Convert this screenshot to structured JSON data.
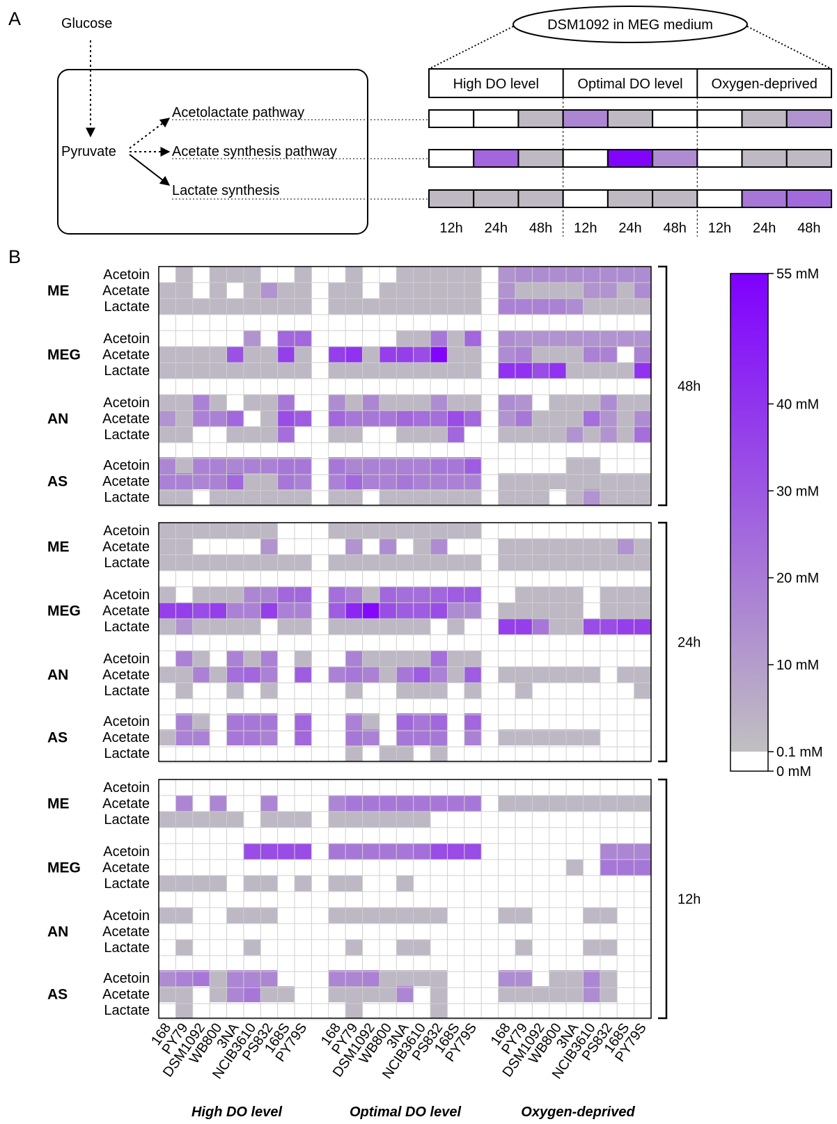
{
  "panel_a": {
    "label": "A",
    "glucose": "Glucose",
    "pyruvate": "Pyruvate",
    "pathways": [
      "Acetolactate pathway",
      "Acetate synthesis pathway",
      "Lactate synthesis"
    ],
    "strain_label": "DSM1092 in MEG medium",
    "conditions": [
      "High DO level",
      "Optimal DO level",
      "Oxygen-deprived"
    ],
    "times": [
      "12h",
      "24h",
      "48h",
      "12h",
      "24h",
      "48h",
      "12h",
      "24h",
      "48h"
    ],
    "levels": [
      [
        0,
        0,
        0.08,
        5,
        0.08,
        0,
        0,
        0.08,
        3
      ],
      [
        0,
        12,
        0.08,
        0,
        52,
        4,
        0,
        0.08,
        0.08
      ],
      [
        0.08,
        0.08,
        0.08,
        0,
        0.08,
        0.08,
        0,
        8,
        11
      ]
    ]
  },
  "panel_b": {
    "label": "B",
    "media": [
      "ME",
      "MEG",
      "AN",
      "AS"
    ],
    "metabolites": [
      "Acetoin",
      "Acetate",
      "Lactate"
    ],
    "timepoints": [
      "48h",
      "24h",
      "12h"
    ],
    "strains": [
      "168",
      "PY79",
      "DSM1092",
      "WB800",
      "3NA",
      "NCIB3610",
      "PS832",
      "168S",
      "PY79S"
    ],
    "conditions": [
      "High DO level",
      "Optimal DO level",
      "Oxygen-deprived"
    ]
  },
  "colorbar": {
    "ticks": [
      "55 mM",
      "40 mM",
      "30 mM",
      "20 mM",
      "10 mM",
      "0.1 mM",
      "0    mM"
    ],
    "colors": {
      "zero": "#ffffff",
      "low": "#c0c0c0",
      "high": "#7f00ff"
    }
  },
  "chart_data": {
    "type": "heatmap",
    "units": "mM",
    "max_value": 55,
    "note_values": "rows: medium × metabolite × timepoint; 27 columns = 3 conditions × 9 strains",
    "data": {
      "48h": {
        "ME": {
          "Acetoin": [
            0,
            0.1,
            0,
            0.1,
            0.1,
            0.1,
            0,
            0,
            0.1,
            0,
            0.1,
            0,
            0,
            0.1,
            0.1,
            0.1,
            0.1,
            0.1,
            3,
            4,
            4,
            4,
            4,
            4,
            4,
            4,
            4
          ],
          "Acetate": [
            0.1,
            0.1,
            0,
            0.1,
            0,
            0.1,
            3,
            0.1,
            0.1,
            0.1,
            0.1,
            0,
            0.1,
            0.1,
            0.1,
            0.1,
            0.1,
            0.1,
            3,
            0.1,
            0.1,
            0.1,
            0.1,
            3,
            3,
            0.1,
            4
          ],
          "Lactate": [
            0.1,
            0.1,
            0.1,
            0.1,
            0.1,
            0.1,
            0.1,
            0.1,
            0.1,
            0.1,
            0.1,
            0.1,
            0.1,
            0.1,
            0.1,
            0.1,
            0.1,
            0.1,
            6,
            6,
            6,
            6,
            4,
            0.1,
            0.1,
            0.1,
            0.1
          ]
        },
        "MEG": {
          "Acetoin": [
            0,
            0,
            0,
            0,
            0,
            3,
            0,
            12,
            12,
            0,
            0,
            0,
            0,
            0.1,
            0.1,
            8,
            0.1,
            12,
            4,
            3,
            3,
            3,
            3,
            3,
            3,
            3,
            3
          ],
          "Acetate": [
            0.1,
            0.1,
            0.1,
            0.1,
            18,
            0.1,
            0.1,
            25,
            0.1,
            25,
            30,
            0.1,
            25,
            25,
            20,
            52,
            0.1,
            0.1,
            4,
            6,
            0.1,
            0.1,
            0.1,
            6,
            6,
            0,
            6
          ],
          "Lactate": [
            0.1,
            0.1,
            0.1,
            0.1,
            0.1,
            0.1,
            0.1,
            0.1,
            0.1,
            0.1,
            0.1,
            0.1,
            0.1,
            0.1,
            0.1,
            0.1,
            0.1,
            0.1,
            30,
            30,
            20,
            30,
            0.1,
            0.1,
            0.1,
            0.1,
            30
          ]
        },
        "AN": {
          "Acetoin": [
            0.1,
            0.1,
            6,
            0.1,
            0,
            0.1,
            0.1,
            8,
            0,
            4,
            0.1,
            5,
            0.1,
            0.1,
            0.1,
            4,
            0.1,
            0.1,
            4,
            3,
            0,
            0.1,
            0.1,
            0.1,
            4,
            0.1,
            0.1
          ],
          "Acetate": [
            3,
            0.1,
            6,
            6,
            12,
            0,
            0.1,
            20,
            15,
            12,
            8,
            8,
            8,
            12,
            10,
            10,
            20,
            12,
            3,
            8,
            0.1,
            0.1,
            0.1,
            10,
            3,
            0.1,
            4
          ],
          "Lactate": [
            0.1,
            0.1,
            0,
            0,
            0.1,
            0.1,
            0.1,
            10,
            0,
            0.1,
            0.1,
            0,
            0,
            0.1,
            0.1,
            0.1,
            12,
            0,
            0.1,
            0.1,
            0.1,
            0.1,
            3,
            0.1,
            3,
            0.1,
            10
          ]
        },
        "AS": {
          "Acetoin": [
            5,
            0.1,
            6,
            6,
            5,
            6,
            6,
            8,
            8,
            8,
            5,
            6,
            6,
            6,
            6,
            8,
            8,
            15,
            0,
            0,
            0,
            0,
            0.1,
            0.1,
            0,
            0,
            0
          ],
          "Acetate": [
            6,
            6,
            5,
            6,
            12,
            0.1,
            0.1,
            8,
            6,
            6,
            12,
            6,
            6,
            8,
            6,
            6,
            6,
            6,
            0.1,
            0.1,
            0.1,
            0.1,
            0.1,
            0.1,
            0.1,
            0.1,
            0.1
          ],
          "Lactate": [
            0.1,
            0.1,
            0,
            0.1,
            0.1,
            0.1,
            0.1,
            0.1,
            0.1,
            0.1,
            0.1,
            0,
            0.1,
            0.1,
            0.1,
            0.1,
            0.1,
            0.1,
            0.1,
            0.1,
            0.1,
            0,
            0.1,
            3,
            0.1,
            0.1,
            0.1
          ]
        }
      },
      "24h": {
        "ME": {
          "Acetoin": [
            0.1,
            0.1,
            0.1,
            0.1,
            0.1,
            0.1,
            0.1,
            0,
            0,
            0.1,
            0.1,
            0.1,
            0.1,
            0.1,
            0.1,
            0.1,
            0.1,
            0.1,
            0,
            0,
            0,
            0,
            0,
            0,
            0,
            0,
            0
          ],
          "Acetate": [
            0.1,
            0.1,
            0,
            0,
            0,
            0,
            3,
            0,
            0,
            0,
            3,
            0,
            4,
            0,
            0.1,
            4,
            0,
            0,
            0.1,
            0.1,
            0.1,
            0.1,
            0.1,
            0.1,
            0.1,
            3,
            0.1
          ],
          "Lactate": [
            0.1,
            0.1,
            0.1,
            0.1,
            0.1,
            0.1,
            0.1,
            0.1,
            0.1,
            0.1,
            0.1,
            0.1,
            0.1,
            0.1,
            0.1,
            0.1,
            0.1,
            0.1,
            0.1,
            0.1,
            0.1,
            0.1,
            0.1,
            0.1,
            0.1,
            0.1,
            0.1
          ]
        },
        "MEG": {
          "Acetoin": [
            0.1,
            0,
            0.1,
            0.1,
            0.1,
            5,
            5,
            12,
            12,
            10,
            6,
            0.1,
            12,
            10,
            10,
            12,
            15,
            15,
            0,
            0.1,
            0.1,
            0.1,
            0.1,
            0,
            0.1,
            0.1,
            0.1
          ],
          "Acetate": [
            25,
            25,
            20,
            25,
            6,
            6,
            25,
            6,
            6,
            15,
            35,
            50,
            20,
            15,
            15,
            20,
            4,
            4,
            0.1,
            0.1,
            0.1,
            0.1,
            0.1,
            0,
            0.1,
            0.1,
            0.1
          ],
          "Lactate": [
            0.1,
            3,
            0.1,
            0.1,
            0.1,
            0.1,
            0,
            0.1,
            0.1,
            0.1,
            0.1,
            0.1,
            0.1,
            0.1,
            0.1,
            0,
            0.1,
            0,
            25,
            25,
            8,
            0.1,
            0.1,
            20,
            20,
            25,
            25
          ]
        },
        "AN": {
          "Acetoin": [
            0,
            6,
            0.1,
            0,
            6,
            0.1,
            6,
            0,
            0.1,
            0,
            6,
            0.1,
            0.1,
            0.1,
            0.1,
            10,
            0.1,
            0.1,
            0,
            0,
            0,
            0,
            0,
            0,
            0,
            0,
            0
          ],
          "Acetate": [
            0.1,
            0.1,
            6,
            0.1,
            10,
            12,
            6,
            0,
            15,
            6,
            8,
            6,
            0.1,
            8,
            15,
            6,
            0.1,
            15,
            0.1,
            0.1,
            0.1,
            0.1,
            0.1,
            0.1,
            0,
            0.1,
            0.1
          ],
          "Lactate": [
            0,
            0.1,
            0,
            0,
            0.1,
            0,
            0.1,
            0,
            0,
            0,
            0.1,
            0,
            0,
            0.1,
            0.1,
            0.1,
            0,
            0.1,
            0,
            0.1,
            0,
            0,
            0,
            0,
            0,
            0,
            0.1
          ]
        },
        "AS": {
          "Acetoin": [
            0,
            6,
            0.1,
            0,
            8,
            8,
            8,
            0,
            12,
            0,
            6,
            0.1,
            0,
            12,
            8,
            12,
            0,
            12,
            0,
            0,
            0,
            0,
            0,
            0,
            0,
            0,
            0
          ],
          "Acetate": [
            0.1,
            6,
            6,
            0,
            8,
            8,
            6,
            0,
            12,
            0,
            8,
            6,
            0,
            8,
            8,
            8,
            0,
            6,
            0.1,
            0.1,
            0.1,
            0.1,
            0.1,
            0.1,
            0,
            0,
            0
          ],
          "Lactate": [
            0,
            0,
            0,
            0,
            0,
            0,
            0,
            0,
            0,
            0,
            0.1,
            0,
            0.1,
            0.1,
            0,
            0.1,
            0,
            0,
            0,
            0,
            0,
            0,
            0,
            0,
            0,
            0,
            0
          ]
        }
      },
      "12h": {
        "ME": {
          "Acetoin": [
            0,
            0,
            0,
            0,
            0,
            0,
            0,
            0,
            0,
            0,
            0,
            0,
            0,
            0,
            0,
            0,
            0,
            0,
            0,
            0,
            0,
            0,
            0,
            0,
            0,
            0,
            0
          ],
          "Acetate": [
            0,
            5,
            0,
            5,
            0,
            0,
            5,
            0,
            0,
            5,
            8,
            8,
            8,
            8,
            8,
            8,
            8,
            8,
            0.1,
            0.1,
            0.1,
            0.1,
            0.1,
            0.1,
            0.1,
            0.1,
            0.1
          ],
          "Lactate": [
            0.1,
            0.1,
            0.1,
            0.1,
            0.1,
            0,
            0.1,
            0.1,
            0.1,
            0.1,
            0.1,
            0.1,
            0.1,
            0.1,
            0.1,
            0,
            0,
            0,
            0,
            0,
            0,
            0,
            0,
            0,
            0,
            0,
            0
          ]
        },
        "MEG": {
          "Acetoin": [
            0,
            0,
            0,
            0,
            0,
            20,
            20,
            20,
            20,
            8,
            8,
            8,
            8,
            8,
            10,
            20,
            20,
            20,
            0,
            0,
            0,
            0,
            0,
            0,
            5,
            5,
            5
          ],
          "Acetate": [
            0,
            0,
            0,
            0,
            0,
            0,
            0,
            0,
            0,
            0,
            0,
            0,
            0,
            0,
            0,
            0,
            0,
            0,
            0,
            0,
            0,
            0,
            0.1,
            0,
            8,
            8,
            8
          ],
          "Lactate": [
            0.1,
            0.1,
            0.1,
            0.1,
            0,
            0.1,
            0.1,
            0,
            0.1,
            0.1,
            0.1,
            0,
            0,
            0.1,
            0,
            0,
            0,
            0,
            0,
            0,
            0,
            0,
            0,
            0,
            0,
            0,
            0
          ]
        },
        "AN": {
          "Acetoin": [
            0.1,
            0.1,
            0,
            0,
            0.1,
            0.1,
            0.1,
            0,
            0,
            0.1,
            0.1,
            0.1,
            0.1,
            0.1,
            0.1,
            0.1,
            0,
            0,
            0.1,
            0.1,
            0,
            0,
            0,
            0.1,
            0.1,
            0,
            0
          ],
          "Acetate": [
            0,
            0,
            0,
            0,
            0,
            0,
            0,
            0,
            0,
            0,
            0,
            0,
            0,
            0,
            0,
            0,
            0,
            0,
            0,
            0,
            0,
            0,
            0,
            0,
            0,
            0,
            0
          ],
          "Lactate": [
            0,
            0.1,
            0,
            0,
            0,
            0.1,
            0,
            0,
            0,
            0,
            0.1,
            0,
            0,
            0.1,
            0.1,
            0,
            0,
            0,
            0,
            0.1,
            0,
            0,
            0,
            0.1,
            0.1,
            0,
            0
          ]
        },
        "AS": {
          "Acetoin": [
            4,
            6,
            8,
            0.1,
            5,
            5,
            5,
            0,
            0,
            5,
            5,
            6,
            0.1,
            0.1,
            0.1,
            0.1,
            0,
            0,
            4,
            4,
            0,
            0.1,
            0.1,
            5,
            0.1,
            0,
            0
          ],
          "Acetate": [
            0.1,
            0.1,
            0,
            0.1,
            5,
            8,
            0.1,
            0.1,
            0,
            0.1,
            0.1,
            0.1,
            0.1,
            5,
            0,
            0.1,
            0,
            0,
            0.1,
            0.1,
            0.1,
            0.1,
            0.1,
            4,
            0.1,
            0,
            0
          ],
          "Lactate": [
            0,
            0.1,
            0,
            0,
            0,
            0,
            0,
            0,
            0,
            0,
            0.1,
            0,
            0,
            0,
            0,
            0.1,
            0,
            0,
            0,
            0,
            0,
            0,
            0,
            0,
            0,
            0,
            0
          ]
        }
      }
    }
  }
}
